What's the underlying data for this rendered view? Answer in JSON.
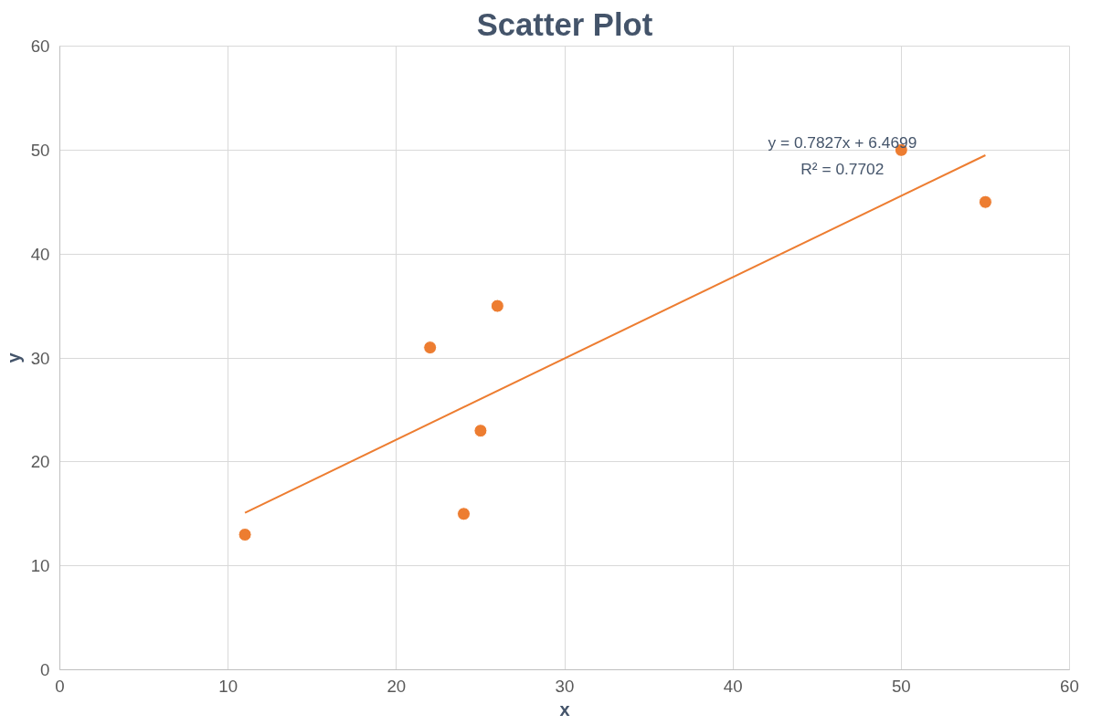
{
  "chart_data": {
    "type": "scatter",
    "title": "Scatter Plot",
    "xlabel": "x",
    "ylabel": "y",
    "series": [
      {
        "color": "#ed7d31",
        "marker": "circle",
        "x": [
          11,
          22,
          24,
          25,
          26,
          50,
          55
        ],
        "values": [
          13,
          31,
          15,
          23,
          35,
          50,
          45
        ]
      },
      {
        "type": "line",
        "color": "#ed7d31",
        "marker": "none",
        "line_style": "solid",
        "x": [
          11,
          55
        ],
        "values": [
          15.1,
          49.5
        ]
      }
    ],
    "annotations": [
      "y = 0.7827x + 6.4699",
      "R² = 0.7702"
    ],
    "xlim": [
      0,
      60
    ],
    "xticks": [
      0,
      10,
      20,
      30,
      40,
      50,
      60
    ],
    "ylim": [
      0,
      60
    ],
    "yticks": [
      0,
      10,
      20,
      30,
      40,
      50,
      60
    ],
    "grid": true
  }
}
